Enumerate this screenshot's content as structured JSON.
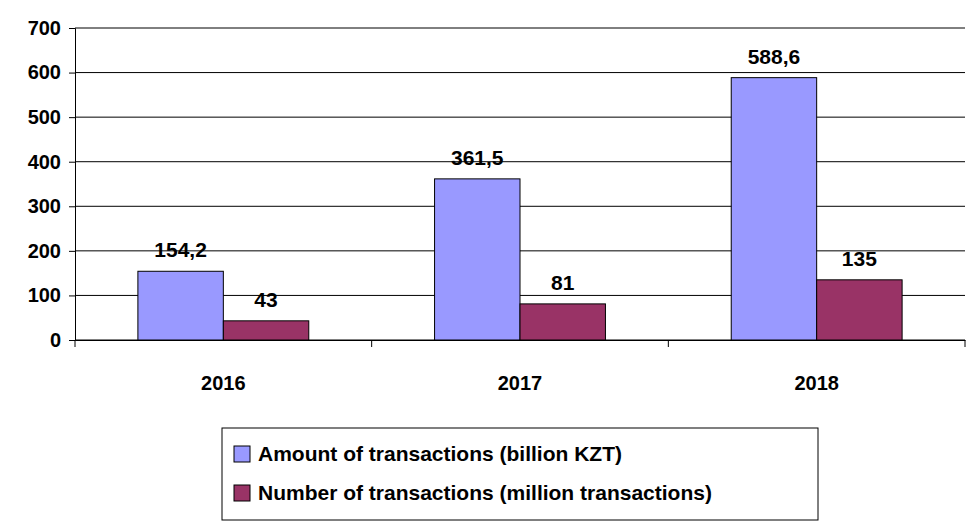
{
  "chart_data": {
    "type": "bar",
    "categories": [
      "2016",
      "2017",
      "2018"
    ],
    "series": [
      {
        "name": "Amount of transactions (billion KZT)",
        "color": "#9999ff",
        "values": [
          154.2,
          361.5,
          588.6
        ],
        "value_labels": [
          "154,2",
          "361,5",
          "588,6"
        ]
      },
      {
        "name": "Number of transactions (million transactions)",
        "color": "#993366",
        "values": [
          43,
          81,
          135
        ]
      }
    ],
    "ylim": [
      0,
      700
    ],
    "yticks": [
      0,
      100,
      200,
      300,
      400,
      500,
      600,
      700
    ],
    "grid": true,
    "legend": "bottom",
    "data_labels": true
  }
}
